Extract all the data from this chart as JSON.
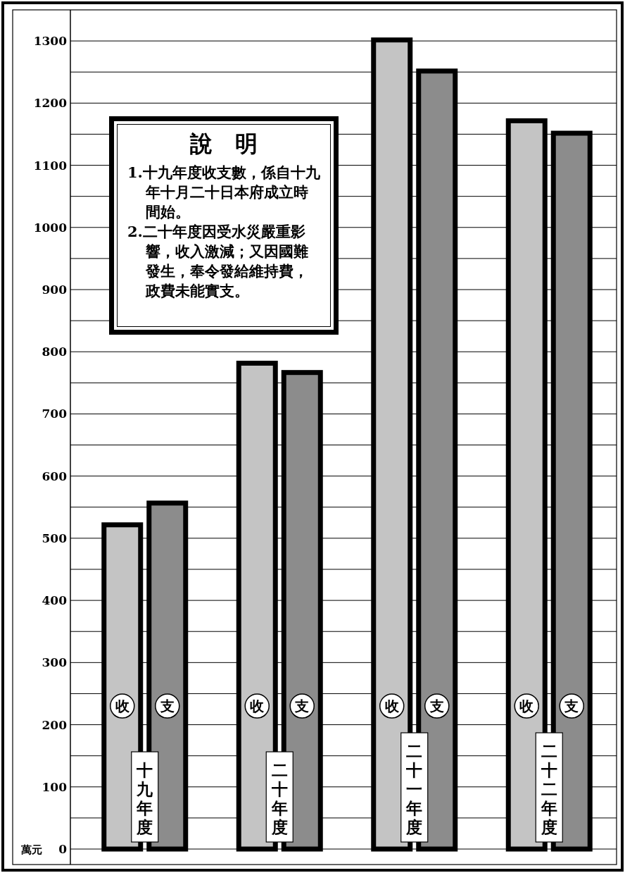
{
  "chart_data": {
    "type": "bar",
    "categories": [
      "十九年度",
      "二十年度",
      "二十一年度",
      "二十二年度"
    ],
    "series": [
      {
        "name": "收",
        "color": "#c4c4c4",
        "values": [
          525,
          785,
          1305,
          1175
        ]
      },
      {
        "name": "支",
        "color": "#8c8c8c",
        "values": [
          560,
          770,
          1255,
          1155
        ]
      }
    ],
    "ylabel": "萬元",
    "ylim": [
      0,
      1350
    ],
    "yticks": [
      0,
      {
        "value": 50,
        "label": null
      },
      100,
      {
        "value": 150,
        "label": null
      },
      200,
      {
        "value": 250,
        "label": null
      },
      300,
      {
        "value": 350,
        "label": null
      },
      400,
      {
        "value": 450,
        "label": null
      },
      500,
      {
        "value": 550,
        "label": null
      },
      600,
      {
        "value": 650,
        "label": null
      },
      700,
      {
        "value": 750,
        "label": null
      },
      800,
      {
        "value": 850,
        "label": null
      },
      900,
      {
        "value": 950,
        "label": null
      },
      1000,
      {
        "value": 1050,
        "label": null
      },
      1100,
      {
        "value": 1150,
        "label": null
      },
      1200,
      {
        "value": 1250,
        "label": null
      },
      1300
    ],
    "grid": "y",
    "annotations": [
      "說　明",
      "1.十九年度收支數，係自十九年十月二十日本府成立時間始。",
      "2.二十年度因受水災嚴重影響，收入激減；又因國難發生，奉令發給維持費，政費未能實支。"
    ]
  }
}
